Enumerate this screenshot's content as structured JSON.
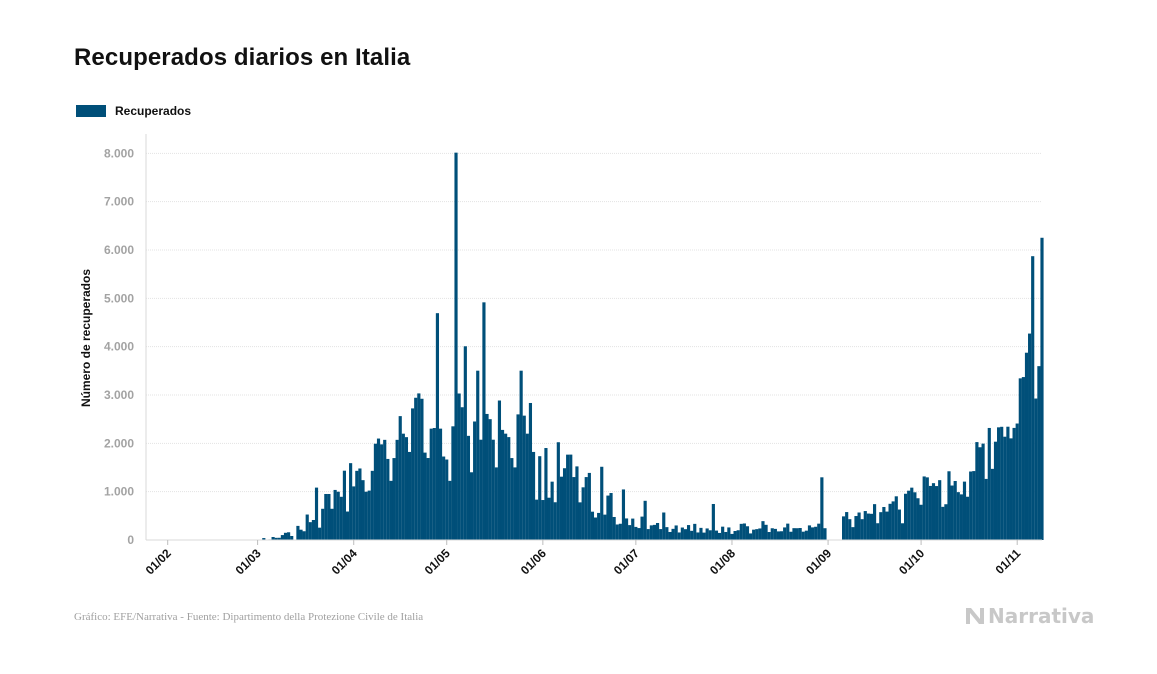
{
  "title": "Recuperados diarios en Italia",
  "legend": {
    "label": "Recuperados",
    "color": "#004f79"
  },
  "footer": {
    "source": "Gráfico: EFE/Narrativa - Fuente: Dipartimento della Protezione Civile de Italia"
  },
  "brand": {
    "name": "Narrativa",
    "icon": "narrativa-logo-icon"
  },
  "chart_data": {
    "type": "bar",
    "title": "Recuperados diarios en Italia",
    "xlabel": "",
    "ylabel": "Número de recuperados",
    "ylim": [
      0,
      8400
    ],
    "yticks": [
      0,
      1000,
      2000,
      3000,
      4000,
      5000,
      6000,
      7000,
      8000
    ],
    "ytick_labels": [
      "0",
      "1.000",
      "2.000",
      "3.000",
      "4.000",
      "5.000",
      "6.000",
      "7.000",
      "8.000"
    ],
    "grid": true,
    "legend_position": "top-left",
    "xdomain_days": [
      -7,
      282
    ],
    "xticks": [
      {
        "day": 0,
        "label": "01/02"
      },
      {
        "day": 29,
        "label": "01/03"
      },
      {
        "day": 60,
        "label": "01/04"
      },
      {
        "day": 90,
        "label": "01/05"
      },
      {
        "day": 121,
        "label": "01/06"
      },
      {
        "day": 151,
        "label": "01/07"
      },
      {
        "day": 182,
        "label": "01/08"
      },
      {
        "day": 213,
        "label": "01/09"
      },
      {
        "day": 243,
        "label": "01/10"
      },
      {
        "day": 274,
        "label": "01/11"
      }
    ],
    "start_day": 24,
    "values": [
      1,
      0,
      0,
      0,
      3,
      0,
      3,
      40,
      0,
      12,
      62,
      45,
      46,
      102,
      149,
      160,
      83,
      0,
      292,
      213,
      181,
      527,
      369,
      414,
      1084,
      255,
      646,
      952,
      952,
      646,
      1036,
      999,
      894,
      1434,
      589,
      1590,
      1109,
      1431,
      1480,
      1238,
      999,
      1022,
      1431,
      1992,
      2099,
      1979,
      2072,
      1677,
      1224,
      1695,
      2072,
      2563,
      2200,
      2128,
      1822,
      2723,
      2943,
      3033,
      2922,
      1808,
      1696,
      2304,
      2317,
      4693,
      2304,
      1727,
      1665,
      1224,
      2352,
      8014,
      3031,
      2747,
      4008,
      2155,
      1401,
      2452,
      3503,
      2075,
      4917,
      2608,
      2500,
      2075,
      1502,
      2886,
      2278,
      2200,
      2129,
      1695,
      1502,
      2599,
      3503,
      2573,
      2200,
      2835,
      1822,
      835,
      1734,
      827,
      1903,
      875,
      1207,
      781,
      2023,
      1310,
      1485,
      1766,
      1767,
      1302,
      1523,
      779,
      1090,
      1302,
      1388,
      586,
      465,
      560,
      1515,
      525,
      919,
      972,
      476,
      321,
      336,
      1046,
      446,
      308,
      443,
      271,
      247,
      484,
      811,
      226,
      303,
      313,
      352,
      226,
      569,
      266,
      166,
      231,
      301,
      156,
      258,
      224,
      309,
      190,
      334,
      156,
      251,
      153,
      239,
      201,
      745,
      195,
      146,
      276,
      166,
      260,
      126,
      186,
      202,
      334,
      342,
      284,
      136,
      214,
      225,
      239,
      390,
      314,
      165,
      243,
      230,
      178,
      181,
      260,
      339,
      171,
      245,
      244,
      248,
      172,
      193,
      302,
      261,
      274,
      338,
      1297,
      244,
      0,
      0,
      0,
      0,
      0,
      489,
      578,
      431,
      266,
      496,
      569,
      431,
      599,
      547,
      542,
      742,
      347,
      576,
      683,
      588,
      749,
      799,
      904,
      630,
      346,
      957,
      1020,
      1083,
      987,
      864,
      729,
      1315,
      1296,
      1119,
      1176,
      1116,
      1238,
      686,
      740,
      1422,
      1127,
      1221,
      990,
      944,
      1208,
      895,
      1417,
      1426,
      2026,
      1919,
      1994,
      1264,
      2318,
      1472,
      2034,
      2331,
      2342,
      2137,
      2344,
      2103,
      2319,
      2410,
      3345,
      3371,
      3875,
      4271,
      5872,
      2927,
      3597,
      6253
    ]
  }
}
